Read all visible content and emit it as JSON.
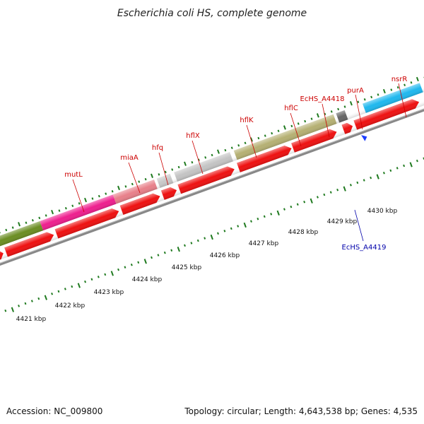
{
  "title": "Escherichia coli HS, complete genome",
  "footer": {
    "accession": "Accession: NC_009800",
    "summary": "Topology: circular; Length: 4,643,538 bp; Genes: 4,535"
  },
  "colors": {
    "gene_label": "#cc0000",
    "highlight_label": "#0000aa",
    "tick": "#1f7a1f",
    "backbone": "#888888",
    "cds": "#ee1111"
  },
  "scale_labels": [
    "4421 kbp",
    "4422 kbp",
    "4423 kbp",
    "4424 kbp",
    "4425 kbp",
    "4426 kbp",
    "4427 kbp",
    "4428 kbp",
    "4429 kbp",
    "4430 kbp"
  ],
  "genes": [
    {
      "label": "mutL"
    },
    {
      "label": "miaA"
    },
    {
      "label": "hfq"
    },
    {
      "label": "hflX"
    },
    {
      "label": "hflK"
    },
    {
      "label": "hflC"
    },
    {
      "label": "EcHS_A4418"
    },
    {
      "label": "purA"
    },
    {
      "label": "nsrR"
    }
  ],
  "highlight": {
    "label": "EcHS_A4419"
  }
}
